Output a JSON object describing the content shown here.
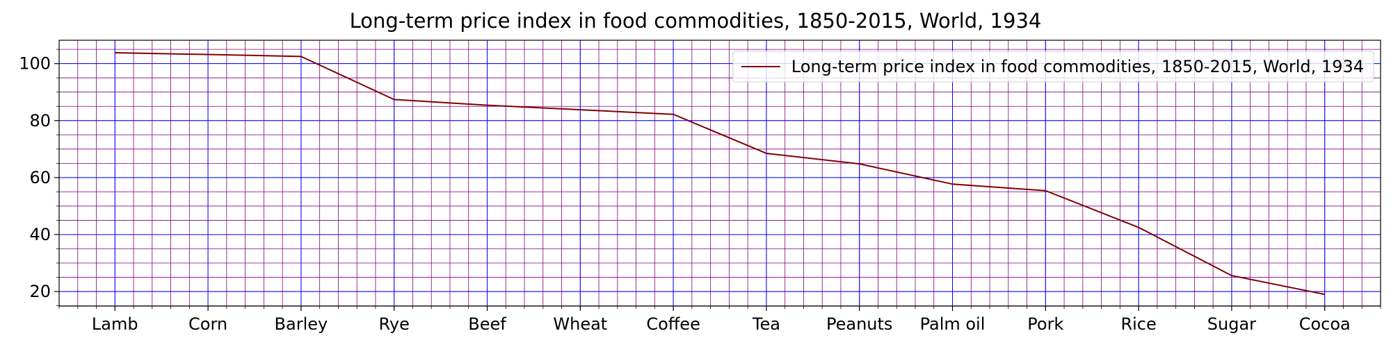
{
  "chart_data": {
    "type": "line",
    "title": "Long-term price index in food commodities, 1850-2015, World, 1934",
    "xlabel": "",
    "ylabel": "",
    "categories": [
      "Lamb",
      "Corn",
      "Barley",
      "Rye",
      "Beef",
      "Wheat",
      "Coffee",
      "Tea",
      "Peanuts",
      "Palm oil",
      "Pork",
      "Rice",
      "Sugar",
      "Cocoa"
    ],
    "series": [
      {
        "name": "Long-term price index in food commodities, 1850-2015, World, 1934",
        "values": [
          103.8,
          103.2,
          102.5,
          87.4,
          85.4,
          83.8,
          82.2,
          68.5,
          64.8,
          57.7,
          55.4,
          42.5,
          25.6,
          19.0
        ],
        "color": "#800000"
      }
    ],
    "ylim": [
      14.9,
      108.2
    ],
    "yticks": [
      20,
      40,
      60,
      80,
      100
    ],
    "grid": true,
    "minor_grid": true,
    "grid_color": "#0000ff",
    "minor_grid_color": "#800080",
    "legend_position": "top-right"
  }
}
